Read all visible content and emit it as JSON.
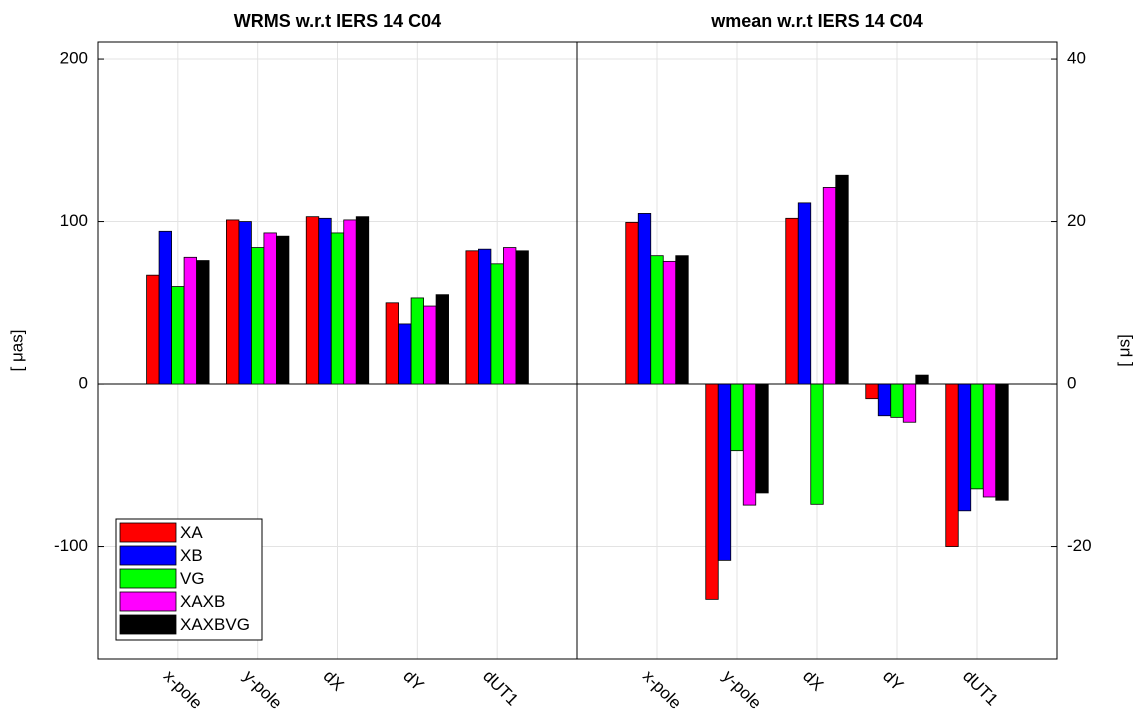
{
  "chart_data": [
    {
      "type": "bar",
      "title": "WRMS w.r.t IERS 14 C04",
      "ylabel": "[ μas]",
      "categories": [
        "x-pole",
        "y-pole",
        "dX",
        "dY",
        "dUT1"
      ],
      "series": [
        {
          "name": "XA",
          "color": "#ff0000",
          "values": [
            67,
            101,
            103,
            50,
            82
          ]
        },
        {
          "name": "XB",
          "color": "#0000ff",
          "values": [
            94,
            100,
            102,
            37,
            83
          ]
        },
        {
          "name": "VG",
          "color": "#00ff00",
          "values": [
            60,
            84,
            93,
            53,
            74
          ]
        },
        {
          "name": "XAXB",
          "color": "#ff00ff",
          "values": [
            78,
            93,
            101,
            48,
            84
          ]
        },
        {
          "name": "XAXBVG",
          "color": "#000000",
          "values": [
            76,
            91,
            103,
            55,
            82
          ]
        }
      ],
      "ylim": [
        -169.2,
        210.5
      ],
      "yticks": [
        -100,
        0,
        100,
        200
      ],
      "grid": true,
      "legend": "lower left"
    },
    {
      "type": "bar",
      "title": "wmean w.r.t IERS 14 C04",
      "ylabel": "[ μs]",
      "categories": [
        "x-pole",
        "y-pole",
        "dX",
        "dY",
        "dUT1"
      ],
      "series": [
        {
          "color": "#ff0000",
          "values": [
            19.9,
            -26.5,
            20.4,
            -1.8,
            -20.0
          ]
        },
        {
          "color": "#0000ff",
          "values": [
            21.0,
            -21.7,
            22.3,
            -3.9,
            -15.6
          ]
        },
        {
          "color": "#00ff00",
          "values": [
            15.8,
            -8.2,
            -14.8,
            -4.1,
            -12.9
          ]
        },
        {
          "color": "#ff00ff",
          "values": [
            15.1,
            -14.9,
            24.2,
            -4.7,
            -13.9
          ]
        },
        {
          "color": "#000000",
          "values": [
            15.8,
            -13.4,
            25.7,
            1.1,
            -14.3
          ]
        }
      ],
      "ylim": [
        -33.84,
        42.1
      ],
      "yticks": [
        -20,
        0,
        20,
        40
      ],
      "grid": true
    }
  ]
}
